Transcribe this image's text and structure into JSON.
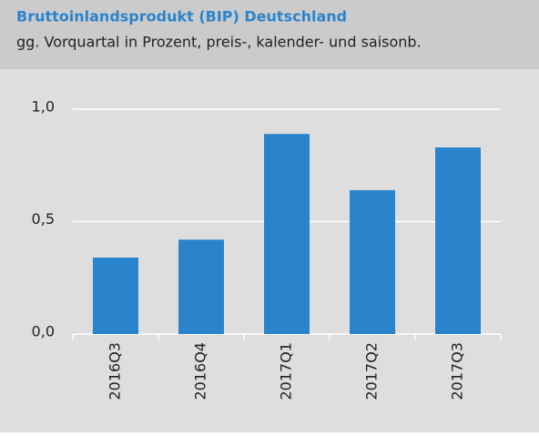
{
  "chart_data": {
    "type": "bar",
    "title": "Bruttoinlandsprodukt (BIP) Deutschland",
    "subtitle": "gg. Vorquartal in Prozent, preis-, kalender- und saisonb.",
    "categories": [
      "2016Q3",
      "2016Q4",
      "2017Q1",
      "2017Q2",
      "2017Q3"
    ],
    "values": [
      0.34,
      0.42,
      0.89,
      0.64,
      0.83
    ],
    "color": "#2a84cc",
    "ylim": [
      0,
      1
    ],
    "yticks": [
      {
        "value": 0,
        "label": "0,0"
      },
      {
        "value": 0.5,
        "label": "0,5"
      },
      {
        "value": 1,
        "label": "1,0"
      }
    ],
    "grid": true
  }
}
